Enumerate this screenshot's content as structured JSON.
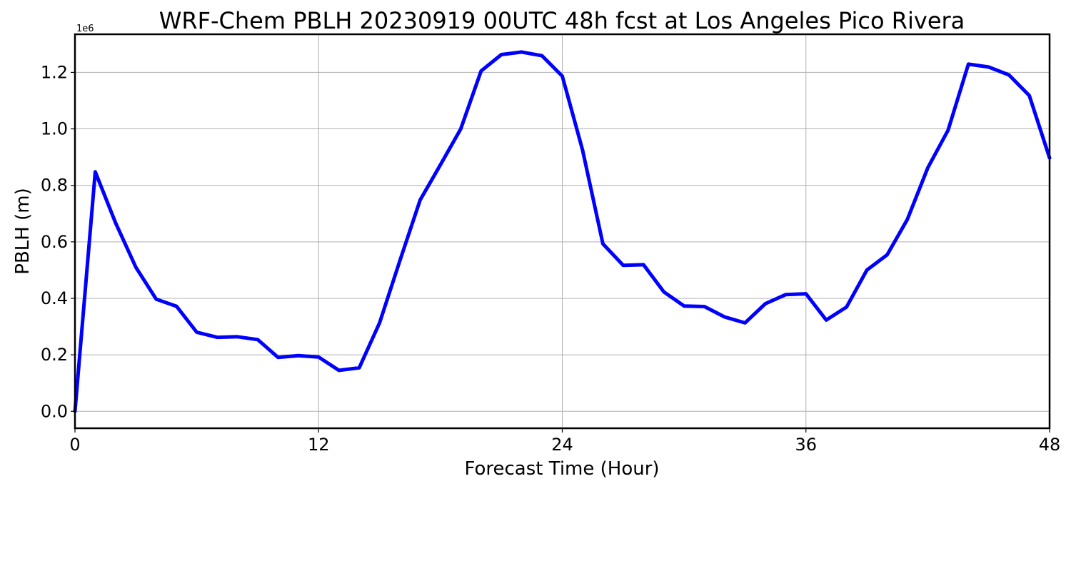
{
  "chart_data": {
    "type": "line",
    "title": "WRF-Chem PBLH  20230919 00UTC 48h fcst at Los Angeles Pico Rivera",
    "xlabel": "Forecast Time (Hour)",
    "ylabel": "PBLH  (m)",
    "y_offset_label": "1e6",
    "xlim": [
      0,
      48
    ],
    "ylim": [
      -60000,
      1335000
    ],
    "x_ticks": [
      0,
      12,
      24,
      36,
      48
    ],
    "x_tick_labels": [
      "0",
      "12",
      "24",
      "36",
      "48"
    ],
    "y_ticks": [
      0,
      200000,
      400000,
      600000,
      800000,
      1000000,
      1200000
    ],
    "y_tick_labels": [
      "0.0",
      "0.2",
      "0.4",
      "0.6",
      "0.8",
      "1.0",
      "1.2"
    ],
    "grid": true,
    "color": "#0000ff",
    "x": [
      0,
      1,
      2,
      3,
      4,
      5,
      6,
      7,
      8,
      9,
      10,
      11,
      12,
      13,
      14,
      15,
      16,
      17,
      18,
      19,
      20,
      21,
      22,
      23,
      24,
      25,
      26,
      27,
      28,
      29,
      30,
      31,
      32,
      33,
      34,
      35,
      36,
      37,
      38,
      39,
      40,
      41,
      42,
      43,
      44,
      45,
      46,
      47,
      48
    ],
    "y": [
      0,
      848000,
      667000,
      510000,
      397000,
      372000,
      280000,
      262000,
      264000,
      254000,
      191000,
      197000,
      192000,
      145000,
      154000,
      313000,
      533000,
      748000,
      873000,
      1000000,
      1205000,
      1263000,
      1272000,
      1259000,
      1187000,
      925000,
      593000,
      517000,
      519000,
      423000,
      373000,
      371000,
      334000,
      313000,
      381000,
      413000,
      416000,
      323000,
      369000,
      500000,
      554000,
      680000,
      862000,
      995000,
      1229000,
      1219000,
      1191000,
      1118000,
      897000
    ]
  }
}
